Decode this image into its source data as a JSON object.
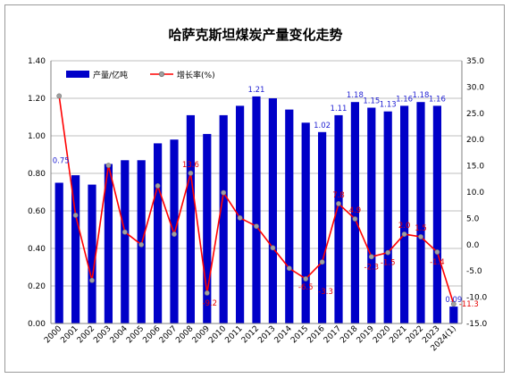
{
  "chart_data": {
    "type": "bar+line",
    "title": "哈萨克斯坦煤炭产量变化走势",
    "categories": [
      "2000",
      "2001",
      "2002",
      "2003",
      "2004",
      "2005",
      "2006",
      "2007",
      "2008",
      "2009",
      "2010",
      "2011",
      "2012",
      "2013",
      "2014",
      "2015",
      "2016",
      "2017",
      "2018",
      "2019",
      "2020",
      "2021",
      "2022",
      "2023",
      "2024(1)"
    ],
    "series": [
      {
        "name": "产量/亿吨",
        "type": "bar",
        "axis": "left",
        "color": "#0000c8",
        "values": [
          0.75,
          0.79,
          0.74,
          0.85,
          0.87,
          0.87,
          0.96,
          0.98,
          1.11,
          1.01,
          1.11,
          1.16,
          1.21,
          1.2,
          1.14,
          1.07,
          1.02,
          1.11,
          1.18,
          1.15,
          1.13,
          1.16,
          1.18,
          1.16,
          0.09
        ],
        "labels": [
          {
            "index": 0,
            "text": "0.75"
          },
          {
            "index": 12,
            "text": "1.21"
          },
          {
            "index": 16,
            "text": "1.02"
          },
          {
            "index": 17,
            "text": "1.11"
          },
          {
            "index": 18,
            "text": "1.18"
          },
          {
            "index": 19,
            "text": "1.15"
          },
          {
            "index": 20,
            "text": "1.13"
          },
          {
            "index": 21,
            "text": "1.16"
          },
          {
            "index": 22,
            "text": "1.18"
          },
          {
            "index": 23,
            "text": "1.16"
          },
          {
            "index": 24,
            "text": "0.09"
          }
        ]
      },
      {
        "name": "增长率(%)",
        "type": "line",
        "axis": "right",
        "color": "#ff0000",
        "values": [
          28.3,
          5.6,
          -6.8,
          15.1,
          2.4,
          0.0,
          11.2,
          2.0,
          13.6,
          -9.2,
          9.9,
          5.1,
          3.5,
          -0.6,
          -4.5,
          -6.5,
          -3.3,
          7.8,
          4.9,
          -2.3,
          -1.5,
          2.0,
          1.5,
          -1.4,
          -11.3
        ],
        "labels": [
          {
            "index": 8,
            "text": "13.6"
          },
          {
            "index": 9,
            "text": "-9.2"
          },
          {
            "index": 15,
            "text": "-6.5"
          },
          {
            "index": 16,
            "text": "-3.3"
          },
          {
            "index": 17,
            "text": "7.8"
          },
          {
            "index": 18,
            "text": "4.9"
          },
          {
            "index": 19,
            "text": "-2.3"
          },
          {
            "index": 20,
            "text": "-1.5"
          },
          {
            "index": 21,
            "text": "2.0"
          },
          {
            "index": 22,
            "text": "1.5"
          },
          {
            "index": 23,
            "text": "-1.4"
          },
          {
            "index": 24,
            "text": "-11.3"
          }
        ]
      }
    ],
    "y_left": {
      "min": 0,
      "max": 1.4,
      "step": 0.2,
      "ticks": [
        "0.00",
        "0.20",
        "0.40",
        "0.60",
        "0.80",
        "1.00",
        "1.20",
        "1.40"
      ]
    },
    "y_right": {
      "min": -15,
      "max": 35,
      "step": 5,
      "ticks": [
        "-15.0",
        "-10.0",
        "-5.0",
        "0.0",
        "5.0",
        "10.0",
        "15.0",
        "20.0",
        "25.0",
        "30.0",
        "35.0"
      ]
    },
    "grid": true,
    "legend_position": "top-left"
  }
}
